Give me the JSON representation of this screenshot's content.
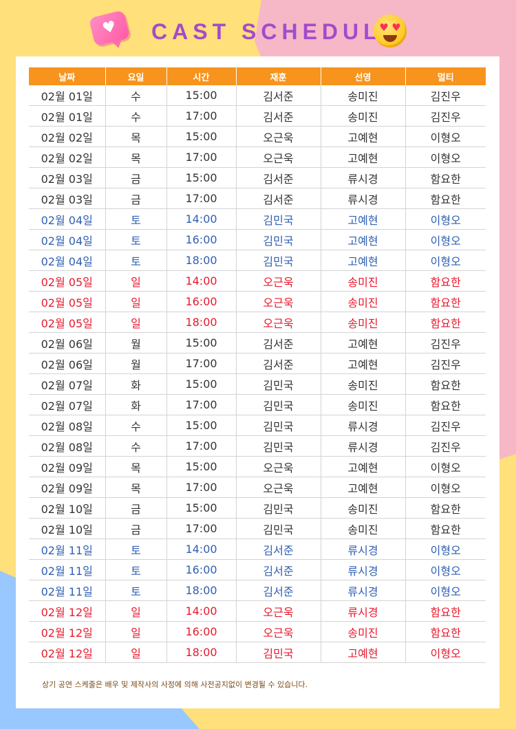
{
  "header": {
    "title": "CAST SCHEDULE"
  },
  "table": {
    "columns": [
      "날짜",
      "요일",
      "시간",
      "재훈",
      "선영",
      "멀티"
    ],
    "rows": [
      {
        "date": "02월 01일",
        "day": "수",
        "time": "15:00",
        "c1": "김서준",
        "c2": "송미진",
        "c3": "김진우",
        "type": "weekday"
      },
      {
        "date": "02월 01일",
        "day": "수",
        "time": "17:00",
        "c1": "김서준",
        "c2": "송미진",
        "c3": "김진우",
        "type": "weekday"
      },
      {
        "date": "02월 02일",
        "day": "목",
        "time": "15:00",
        "c1": "오근욱",
        "c2": "고예현",
        "c3": "이형오",
        "type": "weekday"
      },
      {
        "date": "02월 02일",
        "day": "목",
        "time": "17:00",
        "c1": "오근욱",
        "c2": "고예현",
        "c3": "이형오",
        "type": "weekday"
      },
      {
        "date": "02월 03일",
        "day": "금",
        "time": "15:00",
        "c1": "김서준",
        "c2": "류시경",
        "c3": "함요한",
        "type": "weekday"
      },
      {
        "date": "02월 03일",
        "day": "금",
        "time": "17:00",
        "c1": "김서준",
        "c2": "류시경",
        "c3": "함요한",
        "type": "weekday"
      },
      {
        "date": "02월 04일",
        "day": "토",
        "time": "14:00",
        "c1": "김민국",
        "c2": "고예현",
        "c3": "이형오",
        "type": "sat"
      },
      {
        "date": "02월 04일",
        "day": "토",
        "time": "16:00",
        "c1": "김민국",
        "c2": "고예현",
        "c3": "이형오",
        "type": "sat"
      },
      {
        "date": "02월 04일",
        "day": "토",
        "time": "18:00",
        "c1": "김민국",
        "c2": "고예현",
        "c3": "이형오",
        "type": "sat"
      },
      {
        "date": "02월 05일",
        "day": "일",
        "time": "14:00",
        "c1": "오근욱",
        "c2": "송미진",
        "c3": "함요한",
        "type": "sun"
      },
      {
        "date": "02월 05일",
        "day": "일",
        "time": "16:00",
        "c1": "오근욱",
        "c2": "송미진",
        "c3": "함요한",
        "type": "sun"
      },
      {
        "date": "02월 05일",
        "day": "일",
        "time": "18:00",
        "c1": "오근욱",
        "c2": "송미진",
        "c3": "함요한",
        "type": "sun"
      },
      {
        "date": "02월 06일",
        "day": "월",
        "time": "15:00",
        "c1": "김서준",
        "c2": "고예현",
        "c3": "김진우",
        "type": "weekday"
      },
      {
        "date": "02월 06일",
        "day": "월",
        "time": "17:00",
        "c1": "김서준",
        "c2": "고예현",
        "c3": "김진우",
        "type": "weekday"
      },
      {
        "date": "02월 07일",
        "day": "화",
        "time": "15:00",
        "c1": "김민국",
        "c2": "송미진",
        "c3": "함요한",
        "type": "weekday"
      },
      {
        "date": "02월 07일",
        "day": "화",
        "time": "17:00",
        "c1": "김민국",
        "c2": "송미진",
        "c3": "함요한",
        "type": "weekday"
      },
      {
        "date": "02월 08일",
        "day": "수",
        "time": "15:00",
        "c1": "김민국",
        "c2": "류시경",
        "c3": "김진우",
        "type": "weekday"
      },
      {
        "date": "02월 08일",
        "day": "수",
        "time": "17:00",
        "c1": "김민국",
        "c2": "류시경",
        "c3": "김진우",
        "type": "weekday"
      },
      {
        "date": "02월 09일",
        "day": "목",
        "time": "15:00",
        "c1": "오근욱",
        "c2": "고예현",
        "c3": "이형오",
        "type": "weekday"
      },
      {
        "date": "02월 09일",
        "day": "목",
        "time": "17:00",
        "c1": "오근욱",
        "c2": "고예현",
        "c3": "이형오",
        "type": "weekday"
      },
      {
        "date": "02월 10일",
        "day": "금",
        "time": "15:00",
        "c1": "김민국",
        "c2": "송미진",
        "c3": "함요한",
        "type": "weekday"
      },
      {
        "date": "02월 10일",
        "day": "금",
        "time": "17:00",
        "c1": "김민국",
        "c2": "송미진",
        "c3": "함요한",
        "type": "weekday"
      },
      {
        "date": "02월 11일",
        "day": "토",
        "time": "14:00",
        "c1": "김서준",
        "c2": "류시경",
        "c3": "이형오",
        "type": "sat"
      },
      {
        "date": "02월 11일",
        "day": "토",
        "time": "16:00",
        "c1": "김서준",
        "c2": "류시경",
        "c3": "이형오",
        "type": "sat"
      },
      {
        "date": "02월 11일",
        "day": "토",
        "time": "18:00",
        "c1": "김서준",
        "c2": "류시경",
        "c3": "이형오",
        "type": "sat"
      },
      {
        "date": "02월 12일",
        "day": "일",
        "time": "14:00",
        "c1": "오근욱",
        "c2": "류시경",
        "c3": "함요한",
        "type": "sun"
      },
      {
        "date": "02월 12일",
        "day": "일",
        "time": "16:00",
        "c1": "오근욱",
        "c2": "송미진",
        "c3": "함요한",
        "type": "sun"
      },
      {
        "date": "02월 12일",
        "day": "일",
        "time": "18:00",
        "c1": "김민국",
        "c2": "고예현",
        "c3": "이형오",
        "type": "sun"
      }
    ]
  },
  "notice": "상기 공연 스케줄은 배우 및 제작사의 사정에 의해 사전공지없이 변경될 수 있습니다.",
  "icons": {
    "left": "heart-chat-icon",
    "right": "heart-eyes-emoji-icon"
  },
  "colors": {
    "header_bg": "#f7941d",
    "title": "#a34bcb",
    "saturday": "#2f5fb3",
    "sunday": "#e8192c"
  }
}
